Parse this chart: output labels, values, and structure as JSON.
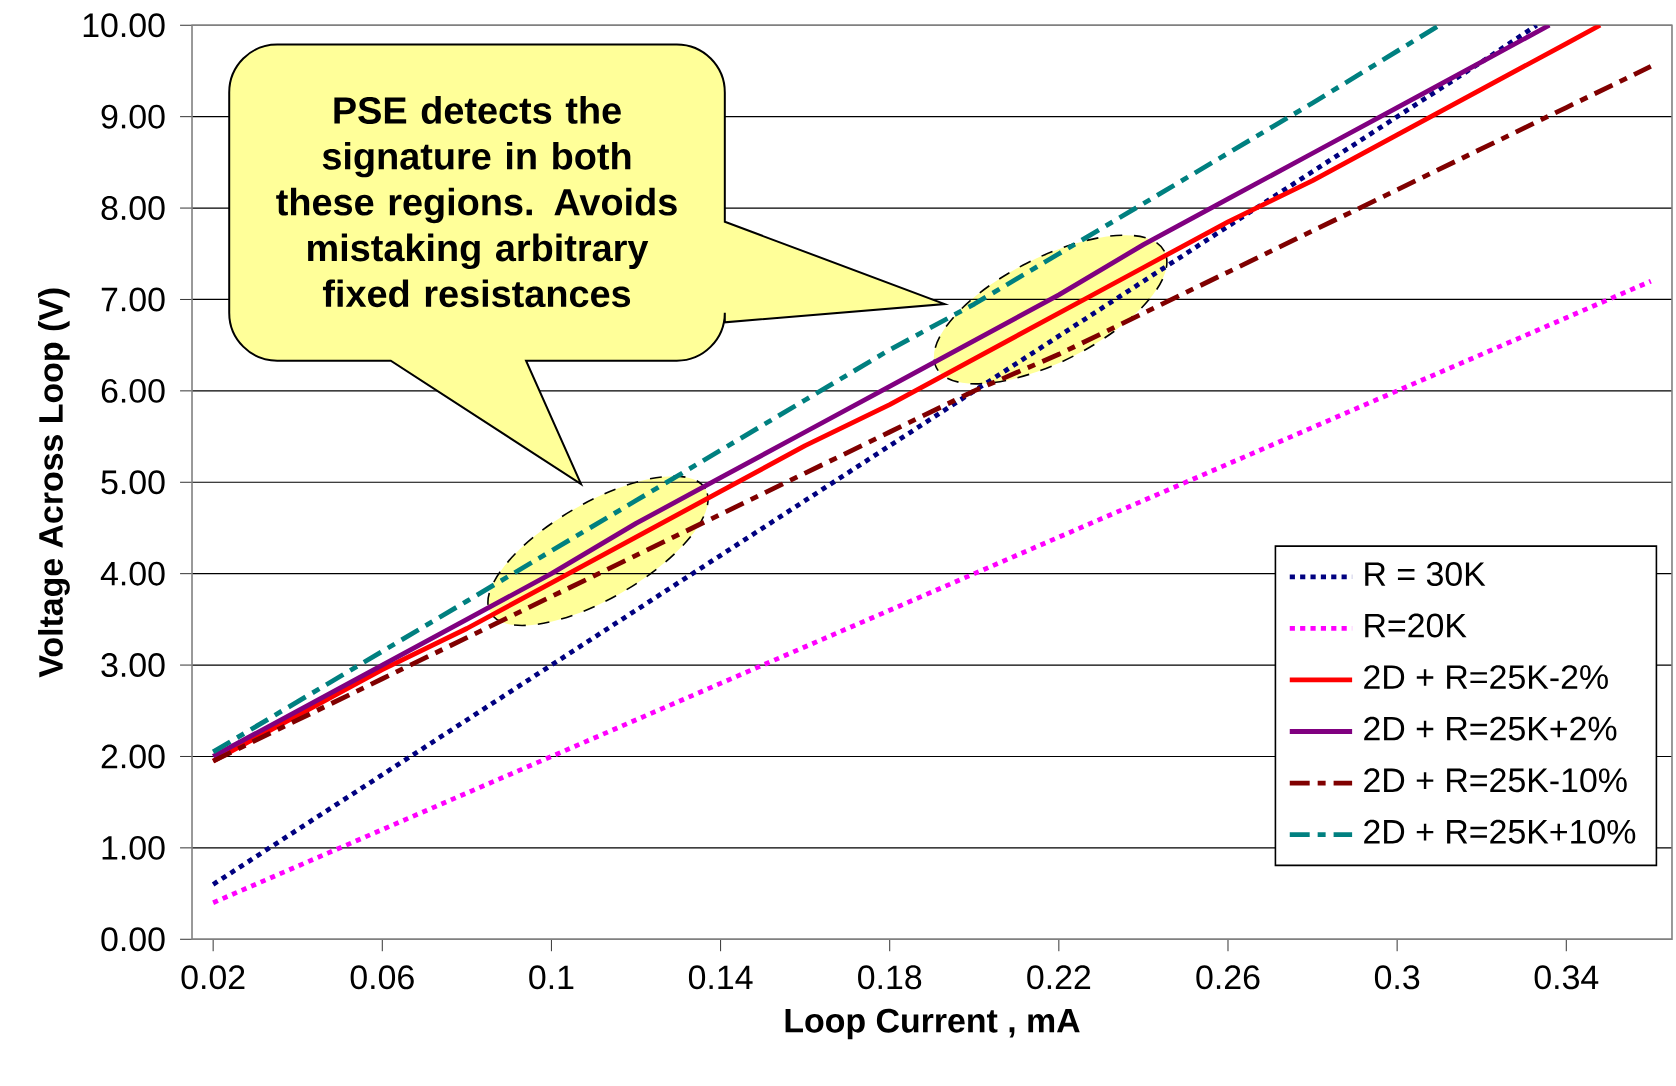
{
  "chart_data": {
    "type": "line",
    "xlabel": "Loop Current , mA",
    "ylabel": "Voltage Across Loop (V)",
    "annotations": [
      "PSE detects the signature in both these regions. Avoids mistaking arbitrary fixed resistances"
    ],
    "xlim": [
      0.015,
      0.365
    ],
    "ylim": [
      0,
      10
    ],
    "xticks": [
      0.02,
      0.06,
      0.1,
      0.14,
      0.18,
      0.22,
      0.26,
      0.3,
      0.34
    ],
    "yticks": [
      {
        "value": 0,
        "label": "0.00"
      },
      {
        "value": 1,
        "label": "1.00"
      },
      {
        "value": 2,
        "label": "2.00"
      },
      {
        "value": 3,
        "label": "3.00"
      },
      {
        "value": 4,
        "label": "4.00"
      },
      {
        "value": 5,
        "label": "5.00"
      },
      {
        "value": 6,
        "label": "6.00"
      },
      {
        "value": 7,
        "label": "7.00"
      },
      {
        "value": 8,
        "label": "8.00"
      },
      {
        "value": 9,
        "label": "9.00"
      },
      {
        "value": 10,
        "label": "10.00"
      }
    ],
    "grid": "y",
    "legend": "right",
    "series": [
      {
        "name": "R = 30K",
        "color": "#000080",
        "line_style": "dotted",
        "x": [
          0.02,
          0.04,
          0.06,
          0.08,
          0.1,
          0.12,
          0.14,
          0.16,
          0.18,
          0.2,
          0.22,
          0.24,
          0.26,
          0.28,
          0.3,
          0.32,
          0.333
        ],
        "values": [
          0.6,
          1.2,
          1.8,
          2.4,
          3.0,
          3.6,
          4.2,
          4.8,
          5.4,
          6.0,
          6.6,
          7.2,
          7.8,
          8.4,
          9.0,
          9.6,
          10.0
        ]
      },
      {
        "name": "R=20K",
        "color": "#ff00ff",
        "line_style": "dotted",
        "x": [
          0.02,
          0.04,
          0.06,
          0.08,
          0.1,
          0.12,
          0.14,
          0.16,
          0.18,
          0.2,
          0.22,
          0.24,
          0.26,
          0.28,
          0.3,
          0.32,
          0.34,
          0.36
        ],
        "values": [
          0.4,
          0.8,
          1.2,
          1.6,
          2.0,
          2.4,
          2.8,
          3.2,
          3.6,
          4.0,
          4.4,
          4.8,
          5.2,
          5.6,
          6.0,
          6.4,
          6.8,
          7.2
        ]
      },
      {
        "name": "2D + R=25K-2%",
        "color": "#ff0000",
        "line_style": "solid",
        "x": [
          0.02,
          0.04,
          0.06,
          0.08,
          0.1,
          0.12,
          0.14,
          0.16,
          0.18,
          0.2,
          0.22,
          0.24,
          0.26,
          0.28,
          0.3,
          0.32,
          0.34,
          0.348
        ],
        "values": [
          1.95,
          2.45,
          2.95,
          3.4,
          3.9,
          4.4,
          4.9,
          5.4,
          5.85,
          6.35,
          6.85,
          7.35,
          7.85,
          8.3,
          8.8,
          9.3,
          9.8,
          10.0
        ]
      },
      {
        "name": "2D + R=25K+2%",
        "color": "#800080",
        "line_style": "solid",
        "x": [
          0.02,
          0.04,
          0.06,
          0.08,
          0.1,
          0.12,
          0.14,
          0.16,
          0.18,
          0.2,
          0.22,
          0.24,
          0.26,
          0.28,
          0.3,
          0.32,
          0.336
        ],
        "values": [
          2.0,
          2.5,
          3.0,
          3.5,
          4.0,
          4.55,
          5.05,
          5.55,
          6.05,
          6.55,
          7.05,
          7.6,
          8.1,
          8.6,
          9.1,
          9.6,
          10.0
        ]
      },
      {
        "name": "2D + R=25K-10%",
        "color": "#800000",
        "line_style": "dashed",
        "x": [
          0.02,
          0.04,
          0.06,
          0.08,
          0.1,
          0.12,
          0.14,
          0.16,
          0.18,
          0.2,
          0.22,
          0.24,
          0.26,
          0.28,
          0.3,
          0.32,
          0.34,
          0.36
        ],
        "values": [
          1.95,
          2.4,
          2.85,
          3.3,
          3.75,
          4.2,
          4.65,
          5.1,
          5.55,
          6.0,
          6.4,
          6.85,
          7.3,
          7.75,
          8.2,
          8.65,
          9.1,
          9.55
        ]
      },
      {
        "name": "2D + R=25K+10%",
        "color": "#008080",
        "line_style": "dashed",
        "x": [
          0.02,
          0.04,
          0.06,
          0.08,
          0.1,
          0.12,
          0.14,
          0.16,
          0.18,
          0.2,
          0.22,
          0.24,
          0.26,
          0.28,
          0.31
        ],
        "values": [
          2.05,
          2.6,
          3.15,
          3.7,
          4.25,
          4.8,
          5.35,
          5.9,
          6.45,
          6.95,
          7.5,
          8.05,
          8.6,
          9.15,
          10.0
        ]
      }
    ]
  }
}
